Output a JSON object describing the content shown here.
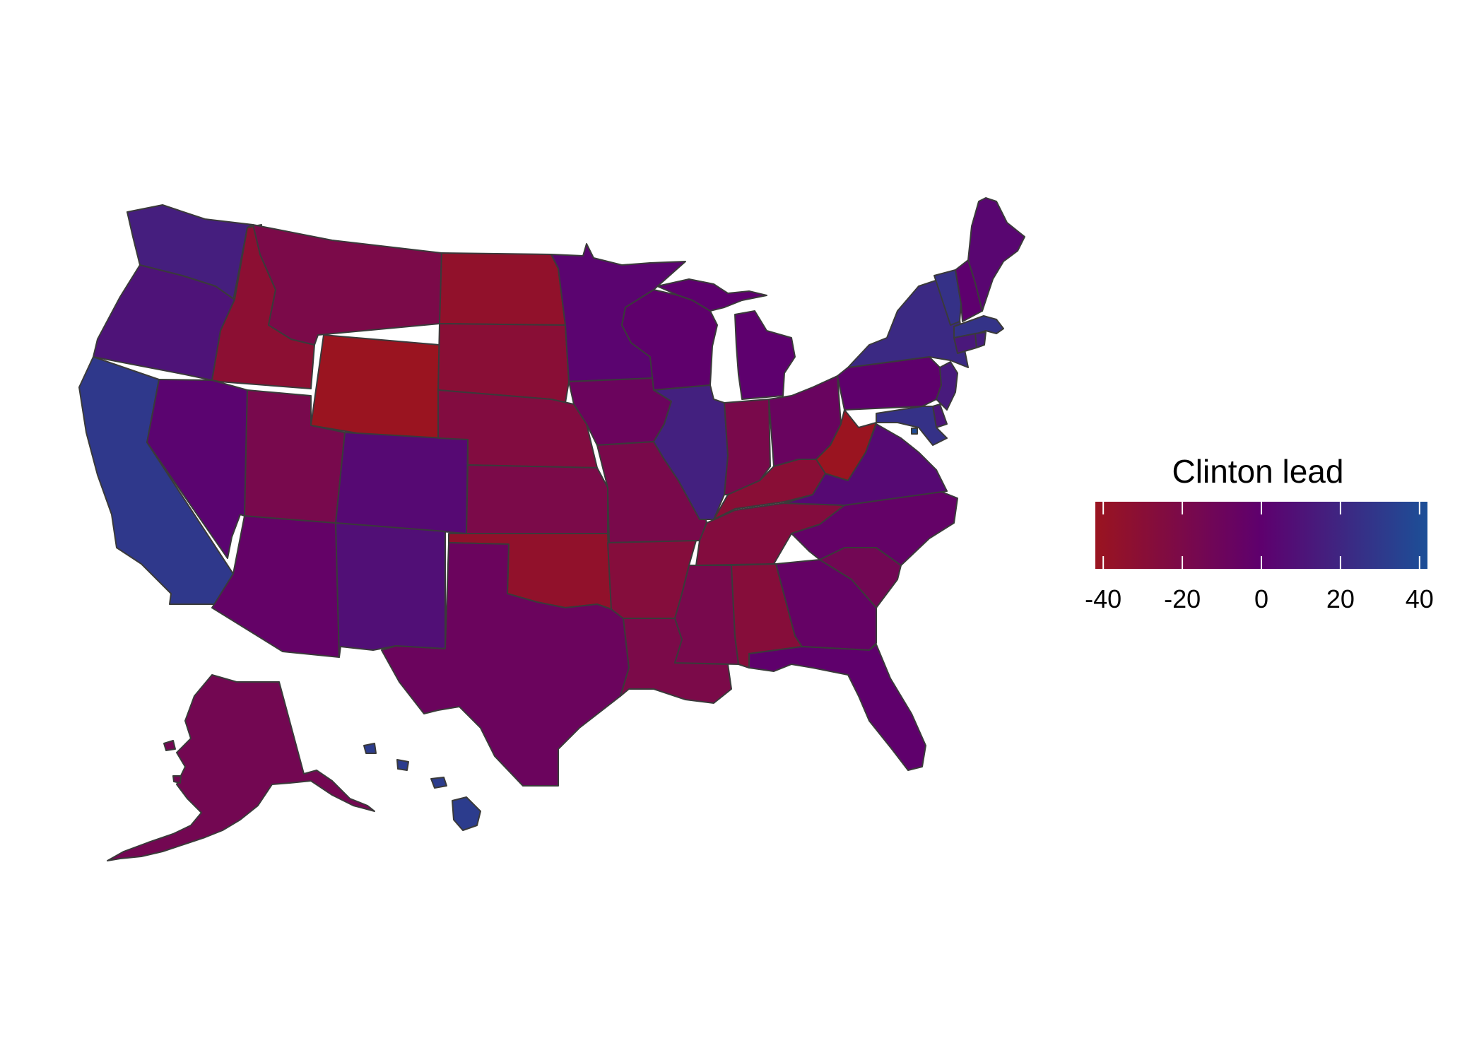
{
  "legend": {
    "title": "Clinton lead",
    "min": -42,
    "max": 42,
    "ticks": [
      -40,
      -20,
      0,
      20,
      40
    ],
    "tick_labels": [
      "-40",
      "-20",
      "0",
      "20",
      "40"
    ],
    "colors": {
      "low": "#9a1420",
      "mid": "#5e006e",
      "high": "#1c4f97"
    }
  },
  "chart_data": {
    "type": "choropleth",
    "value_name": "Clinton lead",
    "scale": {
      "low": -42,
      "mid": 0,
      "high": 42
    },
    "regions": [
      {
        "name": "WA",
        "value": 16
      },
      {
        "name": "OR",
        "value": 10
      },
      {
        "name": "CA",
        "value": 30
      },
      {
        "name": "ID",
        "value": -32
      },
      {
        "name": "NV",
        "value": 2
      },
      {
        "name": "AZ",
        "value": -4
      },
      {
        "name": "MT",
        "value": -20
      },
      {
        "name": "WY",
        "value": -46
      },
      {
        "name": "UT",
        "value": -18
      },
      {
        "name": "CO",
        "value": 5
      },
      {
        "name": "NM",
        "value": 8
      },
      {
        "name": "ND",
        "value": -36
      },
      {
        "name": "SD",
        "value": -30
      },
      {
        "name": "NE",
        "value": -25
      },
      {
        "name": "KS",
        "value": -20
      },
      {
        "name": "OK",
        "value": -36
      },
      {
        "name": "TX",
        "value": -9
      },
      {
        "name": "MN",
        "value": 2
      },
      {
        "name": "IA",
        "value": -9
      },
      {
        "name": "MO",
        "value": -19
      },
      {
        "name": "AR",
        "value": -27
      },
      {
        "name": "LA",
        "value": -20
      },
      {
        "name": "WI",
        "value": -1
      },
      {
        "name": "IL",
        "value": 17
      },
      {
        "name": "MI",
        "value": 0
      },
      {
        "name": "IN",
        "value": -19
      },
      {
        "name": "OH",
        "value": -8
      },
      {
        "name": "KY",
        "value": -30
      },
      {
        "name": "TN",
        "value": -26
      },
      {
        "name": "MS",
        "value": -18
      },
      {
        "name": "AL",
        "value": -28
      },
      {
        "name": "GA",
        "value": -5
      },
      {
        "name": "FL",
        "value": -1
      },
      {
        "name": "SC",
        "value": -14
      },
      {
        "name": "NC",
        "value": -4
      },
      {
        "name": "VA",
        "value": 5
      },
      {
        "name": "WV",
        "value": -42
      },
      {
        "name": "PA",
        "value": -1
      },
      {
        "name": "NY",
        "value": 22
      },
      {
        "name": "VT",
        "value": 26
      },
      {
        "name": "NH",
        "value": 0
      },
      {
        "name": "ME",
        "value": 3
      },
      {
        "name": "MA",
        "value": 27
      },
      {
        "name": "RI",
        "value": 15
      },
      {
        "name": "CT",
        "value": 13
      },
      {
        "name": "NJ",
        "value": 14
      },
      {
        "name": "DE",
        "value": 11
      },
      {
        "name": "MD",
        "value": 26
      },
      {
        "name": "DC",
        "value": 40
      },
      {
        "name": "AK",
        "value": -15
      },
      {
        "name": "HI",
        "value": 32
      }
    ]
  }
}
